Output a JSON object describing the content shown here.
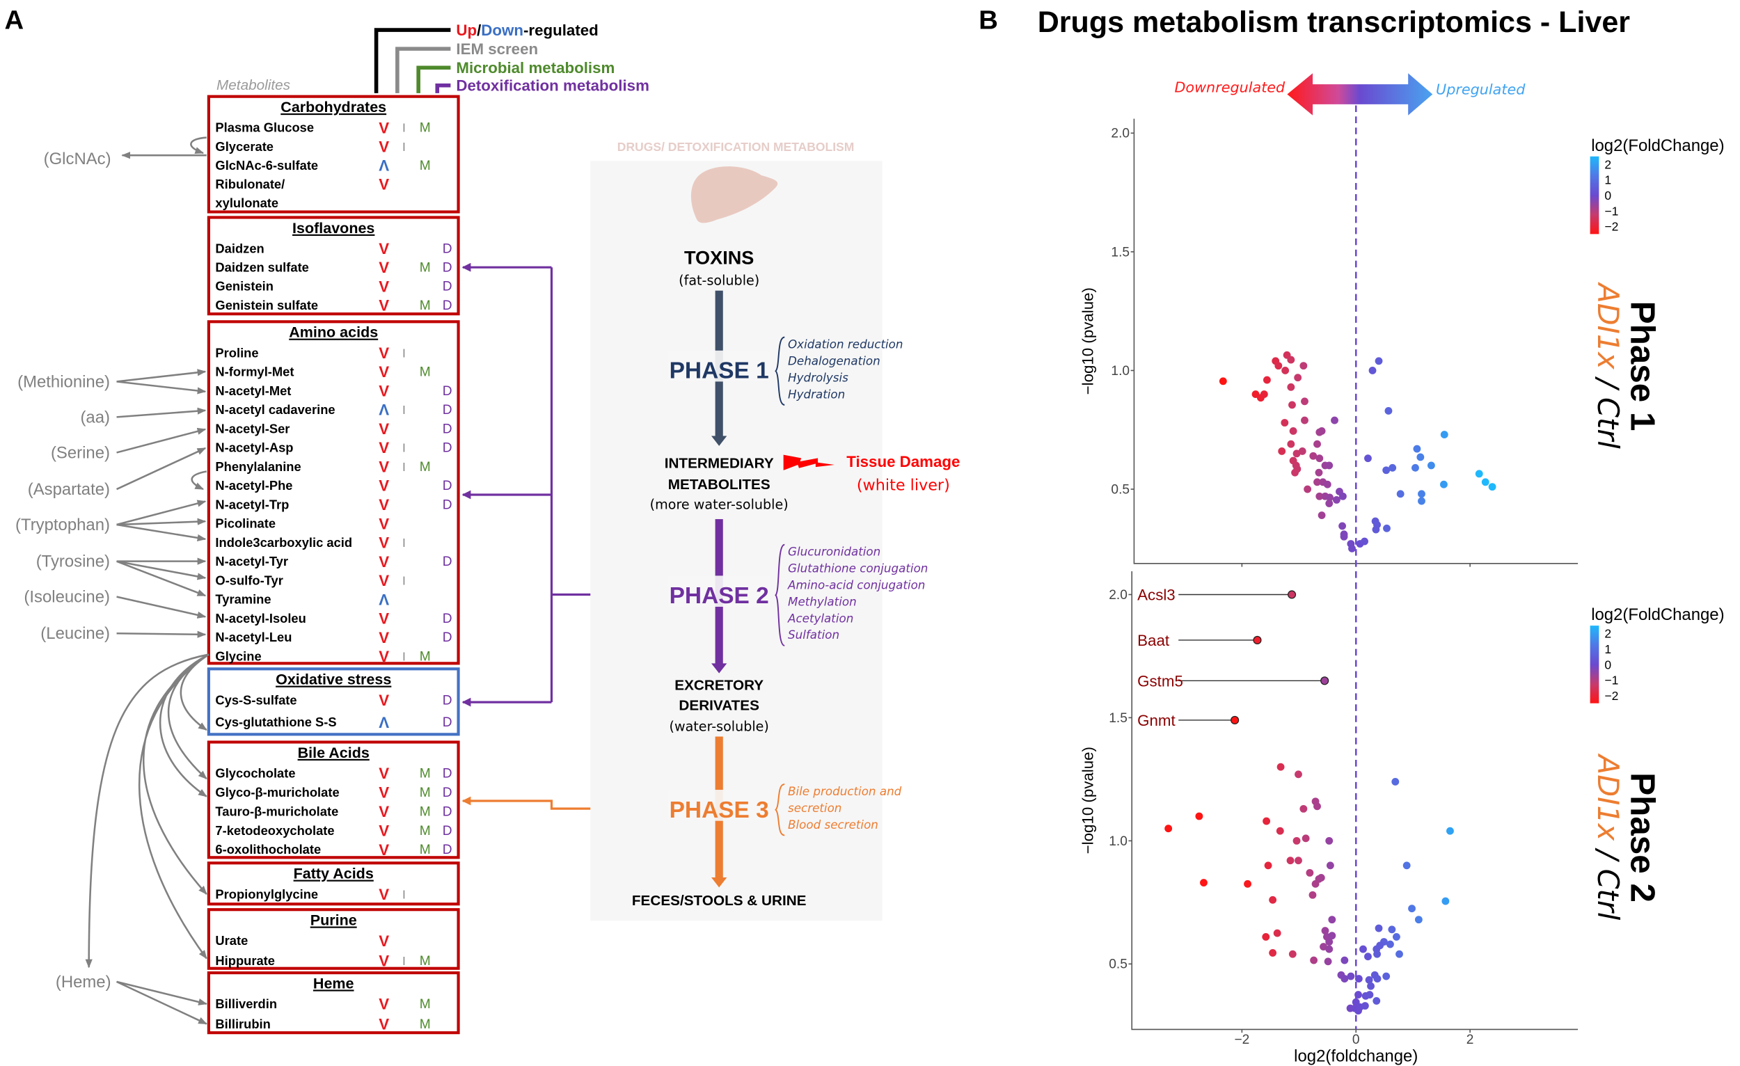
{
  "panel_a": {
    "label": "A",
    "legend": {
      "up": "Up",
      "slash": "/",
      "down": "Down",
      "regulated": "-regulated",
      "iem": "IEM screen",
      "microbial": "Microbial metabolism",
      "detox": "Detoxification metabolism",
      "metabolites": "Metabolites"
    },
    "colors": {
      "up": "#e8191f",
      "down": "#3a6fc4",
      "iem": "#808080",
      "microbial": "#4e8a2c",
      "detox": "#7030a0",
      "box_red": "#c00000",
      "box_blue": "#4472c4"
    },
    "groups": [
      {
        "title": "Carbohydrates",
        "box": "red",
        "rows": [
          {
            "name": "Plasma Glucose",
            "reg": "V",
            "iem": "I",
            "mic": "M",
            "detox": ""
          },
          {
            "name": "Glycerate",
            "reg": "V",
            "iem": "I",
            "mic": "",
            "detox": ""
          },
          {
            "name": "GlcNAc-6-sulfate",
            "reg": "Λ",
            "iem": "",
            "mic": "M",
            "detox": ""
          },
          {
            "name": "Ribulonate/",
            "reg": "V",
            "iem": "",
            "mic": "",
            "detox": ""
          },
          {
            "name": "xylulonate",
            "reg": "",
            "iem": "",
            "mic": "",
            "detox": ""
          }
        ]
      },
      {
        "title": "Isoflavones",
        "box": "red",
        "rows": [
          {
            "name": "Daidzen",
            "reg": "V",
            "iem": "",
            "mic": "",
            "detox": "D"
          },
          {
            "name": "Daidzen sulfate",
            "reg": "V",
            "iem": "",
            "mic": "M",
            "detox": "D"
          },
          {
            "name": "Genistein",
            "reg": "V",
            "iem": "",
            "mic": "",
            "detox": "D"
          },
          {
            "name": "Genistein sulfate",
            "reg": "V",
            "iem": "",
            "mic": "M",
            "detox": "D"
          }
        ]
      },
      {
        "title": "Amino acids",
        "box": "red",
        "rows": [
          {
            "name": "Proline",
            "reg": "V",
            "iem": "I",
            "mic": "",
            "detox": ""
          },
          {
            "name": "N-formyl-Met",
            "reg": "V",
            "iem": "",
            "mic": "M",
            "detox": ""
          },
          {
            "name": "N-acetyl-Met",
            "reg": "V",
            "iem": "",
            "mic": "",
            "detox": "D"
          },
          {
            "name": "N-acetyl cadaverine",
            "reg": "Λ",
            "iem": "I",
            "mic": "",
            "detox": "D"
          },
          {
            "name": "N-acetyl-Ser",
            "reg": "V",
            "iem": "",
            "mic": "",
            "detox": "D"
          },
          {
            "name": "N-acetyl-Asp",
            "reg": "V",
            "iem": "I",
            "mic": "",
            "detox": "D"
          },
          {
            "name": "Phenylalanine",
            "reg": "V",
            "iem": "I",
            "mic": "M",
            "detox": ""
          },
          {
            "name": "N-acetyl-Phe",
            "reg": "V",
            "iem": "",
            "mic": "",
            "detox": "D"
          },
          {
            "name": "N-acetyl-Trp",
            "reg": "V",
            "iem": "",
            "mic": "",
            "detox": "D"
          },
          {
            "name": "Picolinate",
            "reg": "V",
            "iem": "",
            "mic": "",
            "detox": ""
          },
          {
            "name": "Indole3carboxylic acid",
            "reg": "V",
            "iem": "I",
            "mic": "",
            "detox": ""
          },
          {
            "name": "N-acetyl-Tyr",
            "reg": "V",
            "iem": "",
            "mic": "",
            "detox": "D"
          },
          {
            "name": "O-sulfo-Tyr",
            "reg": "V",
            "iem": "I",
            "mic": "",
            "detox": ""
          },
          {
            "name": "Tyramine",
            "reg": "Λ",
            "iem": "",
            "mic": "",
            "detox": ""
          },
          {
            "name": "N-acetyl-Isoleu",
            "reg": "V",
            "iem": "",
            "mic": "",
            "detox": "D"
          },
          {
            "name": "N-acetyl-Leu",
            "reg": "V",
            "iem": "",
            "mic": "",
            "detox": "D"
          },
          {
            "name": "Glycine",
            "reg": "V",
            "iem": "I",
            "mic": "M",
            "detox": ""
          }
        ]
      },
      {
        "title": "Oxidative stress",
        "box": "blue",
        "rows": [
          {
            "name": "Cys-S-sulfate",
            "reg": "V",
            "iem": "",
            "mic": "",
            "detox": "D"
          },
          {
            "name": "Cys-glutathione S-S",
            "reg": "Λ",
            "iem": "",
            "mic": "",
            "detox": "D"
          }
        ]
      },
      {
        "title": "Bile Acids",
        "box": "red",
        "rows": [
          {
            "name": "Glycocholate",
            "reg": "V",
            "iem": "",
            "mic": "M",
            "detox": "D"
          },
          {
            "name": "Glyco-β-muricholate",
            "reg": "V",
            "iem": "",
            "mic": "M",
            "detox": "D"
          },
          {
            "name": "Tauro-β-muricholate",
            "reg": "V",
            "iem": "",
            "mic": "M",
            "detox": "D"
          },
          {
            "name": "7-ketodeoxycholate",
            "reg": "V",
            "iem": "",
            "mic": "M",
            "detox": "D"
          },
          {
            "name": "6-oxolithocholate",
            "reg": "V",
            "iem": "",
            "mic": "M",
            "detox": "D"
          }
        ]
      },
      {
        "title": "Fatty Acids",
        "box": "red",
        "rows": [
          {
            "name": "Propionylglycine",
            "reg": "V",
            "iem": "I",
            "mic": "",
            "detox": ""
          }
        ]
      },
      {
        "title": "Purine",
        "box": "red",
        "rows": [
          {
            "name": "Urate",
            "reg": "V",
            "iem": "",
            "mic": "",
            "detox": ""
          },
          {
            "name": "Hippurate",
            "reg": "V",
            "iem": "I",
            "mic": "M",
            "detox": ""
          }
        ]
      },
      {
        "title": "Heme",
        "box": "red",
        "rows": [
          {
            "name": "Billiverdin",
            "reg": "V",
            "iem": "",
            "mic": "M",
            "detox": ""
          },
          {
            "name": "Billirubin",
            "reg": "V",
            "iem": "",
            "mic": "M",
            "detox": ""
          }
        ]
      }
    ],
    "precursors": [
      "(GlcNAc)",
      "(Methionine)",
      "(aa)",
      "(Serine)",
      "(Aspartate)",
      "(Tryptophan)",
      "(Tyrosine)",
      "(Isoleucine)",
      "(Leucine)",
      "(Heme)"
    ],
    "pathway": {
      "title": "DRUGS/ DETOXIFICATION METABOLISM",
      "toxins": "TOXINS",
      "toxins_sub": "(fat-soluble)",
      "phase1": "PHASE 1",
      "phase1_items": [
        "Oxidation reduction",
        "Dehalogenation",
        "Hydrolysis",
        "Hydration"
      ],
      "intermediary": [
        "INTERMEDIARY",
        "METABOLITES"
      ],
      "intermediary_sub": "(more water-soluble)",
      "tissue_damage": "Tissue Damage",
      "tissue_damage_sub": "(white liver)",
      "phase2": "PHASE 2",
      "phase2_items": [
        "Glucuronidation",
        "Glutathione conjugation",
        "Amino-acid conjugation",
        "Methylation",
        "Acetylation",
        "Sulfation"
      ],
      "excretory": [
        "EXCRETORY",
        "DERIVATES"
      ],
      "excretory_sub": "(water-soluble)",
      "phase3": "PHASE 3",
      "phase3_items": [
        "Bile production and",
        "secretion",
        "Blood secretion"
      ],
      "output": "FECES/STOOLS & URINE",
      "colors": {
        "phase1": "#1f3864",
        "phase1_arrow": "#3f5068",
        "phase2": "#7030a0",
        "phase3": "#ed7d31",
        "damage": "#ff0000"
      }
    }
  },
  "panel_b": {
    "label": "B",
    "title": "Drugs metabolism transcriptomics - Liver",
    "direction": {
      "down": "Downregulated",
      "up": "Upregulated",
      "down_color": "#ff1a1a",
      "up_color": "#3fa3f0"
    },
    "condition": {
      "treat": "ADI1x",
      "sep": " / ",
      "ctrl": "Ctrl",
      "treat_color": "#ed7d31"
    }
  },
  "chart_data": [
    {
      "type": "scatter",
      "panel_title": "Phase 1",
      "xlabel": "log2(foldchange)",
      "ylabel": "−log10 (pvalue)",
      "xlim": [
        -3.85,
        3.85
      ],
      "ylim": [
        0.16,
        2.06
      ],
      "xticks": [
        "−2",
        "0",
        "2"
      ],
      "xtick_values": [
        -2,
        0,
        2
      ],
      "yticks": [
        "0.5",
        "1.0",
        "1.5",
        "2.0"
      ],
      "ytick_values": [
        0.5,
        1.0,
        1.5,
        2.0
      ],
      "reference_line_x": 0,
      "grid": false,
      "legend": {
        "title": "log2(FoldChange)",
        "labels": [
          "2",
          "1",
          "0",
          "−1",
          "−2"
        ],
        "placement": "right",
        "colormap": [
          "#ff1414",
          "#c63a6e",
          "#6a4ad0",
          "#4f78e6",
          "#1fb8fc"
        ]
      },
      "points": [
        [
          -2.33,
          0.955
        ],
        [
          -1.76,
          0.9
        ],
        [
          -1.67,
          0.885
        ],
        [
          -1.61,
          0.9
        ],
        [
          -1.56,
          0.96
        ],
        [
          -1.41,
          1.04
        ],
        [
          -1.36,
          1.02
        ],
        [
          -1.21,
          1.065
        ],
        [
          -1.14,
          1.045
        ],
        [
          -1.24,
          1.0
        ],
        [
          -0.92,
          1.02
        ],
        [
          -1.02,
          0.97
        ],
        [
          -1.14,
          0.93
        ],
        [
          -1.12,
          0.855
        ],
        [
          -0.9,
          0.87
        ],
        [
          -1.25,
          0.78
        ],
        [
          -0.9,
          0.79
        ],
        [
          -0.375,
          0.79
        ],
        [
          -1.1,
          0.745
        ],
        [
          -0.64,
          0.74
        ],
        [
          -0.6,
          0.745
        ],
        [
          -0.68,
          0.69
        ],
        [
          -1.14,
          0.69
        ],
        [
          -1.3,
          0.66
        ],
        [
          -0.94,
          0.66
        ],
        [
          -1.04,
          0.65
        ],
        [
          -1.1,
          0.62
        ],
        [
          -1.05,
          0.6
        ],
        [
          -1.03,
          0.585
        ],
        [
          -1.07,
          0.57
        ],
        [
          -0.75,
          0.64
        ],
        [
          -0.64,
          0.63
        ],
        [
          -0.54,
          0.6
        ],
        [
          -0.47,
          0.6
        ],
        [
          -0.65,
          0.57
        ],
        [
          -0.68,
          0.53
        ],
        [
          -0.58,
          0.53
        ],
        [
          -0.5,
          0.52
        ],
        [
          -0.85,
          0.5
        ],
        [
          -0.64,
          0.47
        ],
        [
          -0.54,
          0.47
        ],
        [
          -0.46,
          0.465
        ],
        [
          -0.47,
          0.44
        ],
        [
          -0.34,
          0.455
        ],
        [
          -0.29,
          0.49
        ],
        [
          -0.23,
          0.47
        ],
        [
          -0.6,
          0.39
        ],
        [
          -0.24,
          0.345
        ],
        [
          -0.21,
          0.31
        ],
        [
          -0.21,
          0.3
        ],
        [
          -0.09,
          0.27
        ],
        [
          -0.07,
          0.25
        ],
        [
          0.07,
          0.27
        ],
        [
          0.15,
          0.28
        ],
        [
          0.21,
          0.63
        ],
        [
          0.29,
          1.0
        ],
        [
          0.4,
          1.04
        ],
        [
          0.57,
          0.83
        ],
        [
          0.34,
          0.365
        ],
        [
          0.37,
          0.35
        ],
        [
          0.35,
          0.33
        ],
        [
          0.54,
          0.335
        ],
        [
          0.53,
          0.58
        ],
        [
          0.64,
          0.59
        ],
        [
          0.78,
          0.48
        ],
        [
          1.04,
          0.59
        ],
        [
          1.07,
          0.67
        ],
        [
          1.13,
          0.635
        ],
        [
          1.15,
          0.48
        ],
        [
          1.15,
          0.45
        ],
        [
          1.32,
          0.6
        ],
        [
          1.54,
          0.52
        ],
        [
          1.55,
          0.73
        ],
        [
          2.16,
          0.565
        ],
        [
          2.27,
          0.53
        ],
        [
          2.39,
          0.51
        ]
      ],
      "labeled_points": []
    },
    {
      "type": "scatter",
      "panel_title": "Phase 2",
      "xlabel": "log2(foldchange)",
      "ylabel": "−log10 (pvalue)",
      "xlim": [
        -3.88,
        3.85
      ],
      "ylim": [
        0.23,
        2.09
      ],
      "xticks": [
        "−2",
        "0",
        "2"
      ],
      "xtick_values": [
        -2,
        0,
        2
      ],
      "yticks": [
        "0.5",
        "1.0",
        "1.5",
        "2.0"
      ],
      "ytick_values": [
        0.5,
        1.0,
        1.5,
        2.0
      ],
      "reference_line_x": 0,
      "grid": false,
      "legend": {
        "title": "log2(FoldChange)",
        "labels": [
          "2",
          "1",
          "0",
          "−1",
          "−2"
        ],
        "placement": "right",
        "colormap": [
          "#ff1414",
          "#c63a6e",
          "#6a4ad0",
          "#4f78e6",
          "#1fb8fc"
        ]
      },
      "points": [
        [
          -1.32,
          1.3
        ],
        [
          -1.01,
          1.27
        ],
        [
          0.69,
          1.24
        ],
        [
          -0.71,
          1.16
        ],
        [
          -0.68,
          1.14
        ],
        [
          -0.92,
          1.13
        ],
        [
          -2.75,
          1.1
        ],
        [
          -1.57,
          1.08
        ],
        [
          -3.29,
          1.05
        ],
        [
          -1.33,
          1.04
        ],
        [
          1.65,
          1.04
        ],
        [
          -0.88,
          1.01
        ],
        [
          -1.04,
          1.0
        ],
        [
          -0.47,
          1.0
        ],
        [
          -1.15,
          0.92
        ],
        [
          -1.01,
          0.92
        ],
        [
          -1.54,
          0.9
        ],
        [
          -0.45,
          0.9
        ],
        [
          0.89,
          0.9
        ],
        [
          -0.81,
          0.87
        ],
        [
          -0.61,
          0.85
        ],
        [
          -0.65,
          0.845
        ],
        [
          -0.71,
          0.825
        ],
        [
          -2.67,
          0.83
        ],
        [
          -1.9,
          0.825
        ],
        [
          -0.76,
          0.78
        ],
        [
          -1.46,
          0.76
        ],
        [
          1.57,
          0.755
        ],
        [
          0.98,
          0.725
        ],
        [
          1.1,
          0.68
        ],
        [
          -0.42,
          0.68
        ],
        [
          -0.54,
          0.635
        ],
        [
          -1.38,
          0.625
        ],
        [
          -1.58,
          0.61
        ],
        [
          -0.51,
          0.61
        ],
        [
          -0.42,
          0.615
        ],
        [
          -0.47,
          0.59
        ],
        [
          -0.57,
          0.57
        ],
        [
          -0.47,
          0.56
        ],
        [
          0.4,
          0.645
        ],
        [
          0.63,
          0.64
        ],
        [
          0.71,
          0.61
        ],
        [
          0.6,
          0.58
        ],
        [
          0.49,
          0.59
        ],
        [
          0.42,
          0.575
        ],
        [
          0.36,
          0.56
        ],
        [
          0.37,
          0.54
        ],
        [
          0.76,
          0.54
        ],
        [
          0.125,
          0.56
        ],
        [
          0.21,
          0.53
        ],
        [
          -1.46,
          0.545
        ],
        [
          -1.11,
          0.54
        ],
        [
          -0.74,
          0.515
        ],
        [
          -0.49,
          0.51
        ],
        [
          -0.2,
          0.515
        ],
        [
          -0.26,
          0.455
        ],
        [
          -0.2,
          0.44
        ],
        [
          -0.09,
          0.45
        ],
        [
          0.05,
          0.44
        ],
        [
          0.23,
          0.435
        ],
        [
          0.33,
          0.455
        ],
        [
          0.375,
          0.44
        ],
        [
          0.53,
          0.45
        ],
        [
          0.26,
          0.41
        ],
        [
          0.04,
          0.375
        ],
        [
          0.17,
          0.37
        ],
        [
          0.24,
          0.375
        ],
        [
          0.36,
          0.35
        ],
        [
          0.0,
          0.345
        ],
        [
          -0.1,
          0.32
        ],
        [
          -0.02,
          0.32
        ],
        [
          0.07,
          0.325
        ],
        [
          0.16,
          0.33
        ],
        [
          0.04,
          0.31
        ]
      ],
      "labeled_points": [
        {
          "label": "Acsl3",
          "x": -1.125,
          "y": 2.0
        },
        {
          "label": "Baat",
          "x": -1.73,
          "y": 1.815
        },
        {
          "label": "Gstm5",
          "x": -0.55,
          "y": 1.65
        },
        {
          "label": "Gnmt",
          "x": -2.125,
          "y": 1.49
        }
      ],
      "label_color": "#8b0000"
    }
  ]
}
